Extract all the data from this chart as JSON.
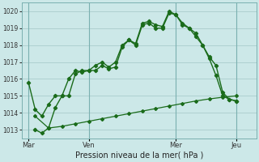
{
  "bg_color": "#cce8e8",
  "grid_color": "#aacccc",
  "line_color": "#1a6b1a",
  "title": "Pression niveau de la mer( hPa )",
  "ylim": [
    1012.5,
    1020.5
  ],
  "yticks": [
    1013,
    1014,
    1015,
    1016,
    1017,
    1018,
    1019,
    1020
  ],
  "xtick_labels": [
    "Mar",
    "Ven",
    "Mer",
    "Jeu"
  ],
  "xtick_positions": [
    0,
    9,
    22,
    31
  ],
  "vlines": [
    0,
    9,
    22,
    31
  ],
  "xlim": [
    -1,
    34
  ],
  "series1_x": [
    0,
    1,
    2,
    3,
    4,
    5,
    6,
    7,
    8,
    9,
    10,
    11,
    12,
    13,
    14,
    15,
    16,
    17,
    18,
    19,
    20,
    21,
    22,
    23,
    24,
    25,
    26,
    27,
    28,
    29,
    30,
    31
  ],
  "series1_y": [
    1015.8,
    1014.2,
    1013.8,
    1014.5,
    1015.0,
    1015.0,
    1016.0,
    1016.5,
    1016.4,
    1016.5,
    1016.8,
    1017.0,
    1016.7,
    1017.0,
    1018.0,
    1018.3,
    1018.1,
    1019.3,
    1019.4,
    1019.2,
    1019.1,
    1020.0,
    1019.8,
    1019.2,
    1019.0,
    1018.7,
    1018.0,
    1017.3,
    1016.8,
    1015.2,
    1014.8,
    1014.7
  ],
  "series2_x": [
    1,
    2,
    3,
    4,
    5,
    6,
    7,
    8,
    9,
    10,
    11,
    12,
    13,
    14,
    15,
    16,
    17,
    18,
    19,
    20,
    21,
    22,
    23,
    24,
    25,
    26,
    27,
    28,
    29,
    30,
    31
  ],
  "series2_y": [
    1013.0,
    1012.8,
    1013.1,
    1014.3,
    1015.0,
    1015.0,
    1016.3,
    1016.5,
    1016.5,
    1016.5,
    1016.8,
    1016.6,
    1016.7,
    1017.9,
    1018.3,
    1018.0,
    1019.2,
    1019.3,
    1019.0,
    1019.0,
    1019.9,
    1019.8,
    1019.3,
    1019.0,
    1018.5,
    1018.0,
    1017.2,
    1016.2,
    1015.0,
    1014.8,
    1014.7
  ],
  "series3_x": [
    1,
    3,
    5,
    7,
    9,
    11,
    13,
    15,
    17,
    19,
    21,
    23,
    25,
    27,
    29,
    31
  ],
  "series3_y": [
    1013.8,
    1013.1,
    1013.2,
    1013.35,
    1013.5,
    1013.65,
    1013.8,
    1013.95,
    1014.1,
    1014.25,
    1014.4,
    1014.55,
    1014.7,
    1014.82,
    1014.92,
    1015.0
  ]
}
